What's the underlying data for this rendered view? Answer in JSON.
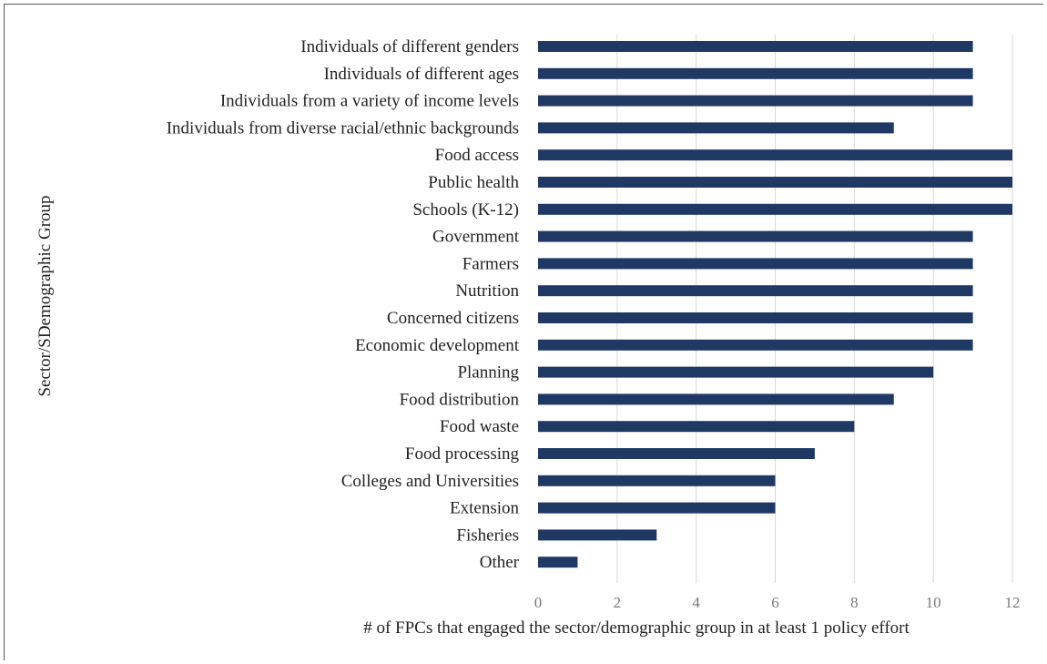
{
  "chart_data": {
    "type": "bar",
    "orientation": "horizontal",
    "categories": [
      "Individuals of different genders",
      "Individuals of different ages",
      "Individuals from a variety of income levels",
      "Individuals from diverse racial/ethnic backgrounds",
      "Food access",
      "Public health",
      "Schools (K-12)",
      "Government",
      "Farmers",
      "Nutrition",
      "Concerned citizens",
      "Economic development",
      "Planning",
      "Food distribution",
      "Food waste",
      "Food processing",
      "Colleges and Universities",
      "Extension",
      "Fisheries",
      "Other"
    ],
    "values": [
      11,
      11,
      11,
      9,
      12,
      12,
      12,
      11,
      11,
      11,
      11,
      11,
      10,
      9,
      8,
      7,
      6,
      6,
      3,
      1
    ],
    "xlabel": "# of FPCs that engaged the sector/demographic group in at least 1 policy effort",
    "ylabel": "Sector/SDemographic Group",
    "xlim": [
      0,
      12
    ],
    "xticks": [
      0,
      2,
      4,
      6,
      8,
      10,
      12
    ],
    "grid": "vertical",
    "bar_color": "#1f3864",
    "legend": "none"
  }
}
